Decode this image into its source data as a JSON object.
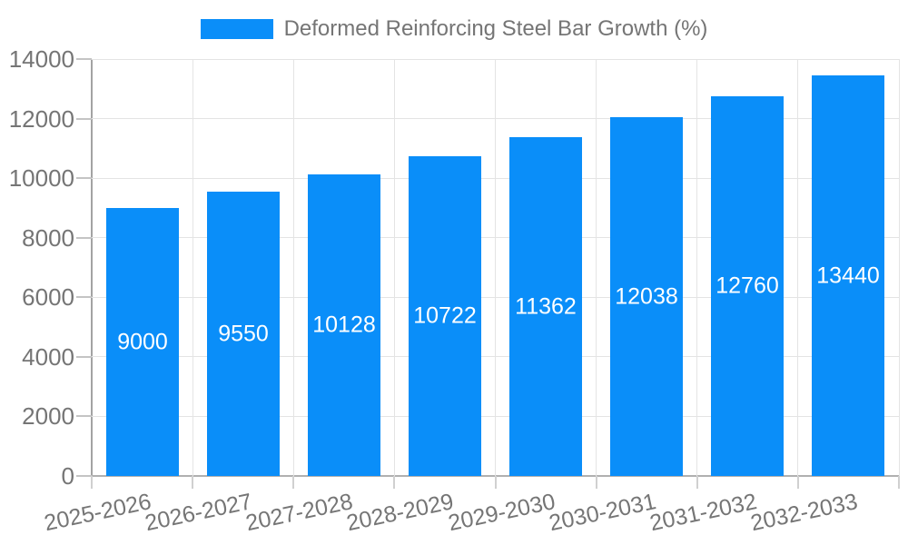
{
  "legend": {
    "items": [
      {
        "label": "Deformed Reinforcing Steel Bar Growth (%)",
        "color": "#0a8ef9"
      }
    ],
    "position": "top-center"
  },
  "chart_data": {
    "type": "bar",
    "title": "Deformed Reinforcing Steel Bar Growth (%)",
    "series_name": "Deformed Reinforcing Steel Bar Growth (%)",
    "categories": [
      "2025-2026",
      "2026-2027",
      "2027-2028",
      "2028-2029",
      "2029-2030",
      "2030-2031",
      "2031-2032",
      "2032-2033"
    ],
    "values": [
      9000,
      9550,
      10128,
      10722,
      11362,
      12038,
      12760,
      13440
    ],
    "xlabel": "",
    "ylabel": "",
    "ylim": [
      0,
      14000
    ],
    "yticks": [
      0,
      2000,
      4000,
      6000,
      8000,
      10000,
      12000,
      14000
    ],
    "grid": true,
    "x_label_rotation_deg": -12,
    "legend_position": "top-center",
    "bar_color": "#0a8ef9",
    "value_label_color": "#ffffff",
    "axis_text_color": "#757575",
    "gridline_color": "#e4e4e4"
  }
}
